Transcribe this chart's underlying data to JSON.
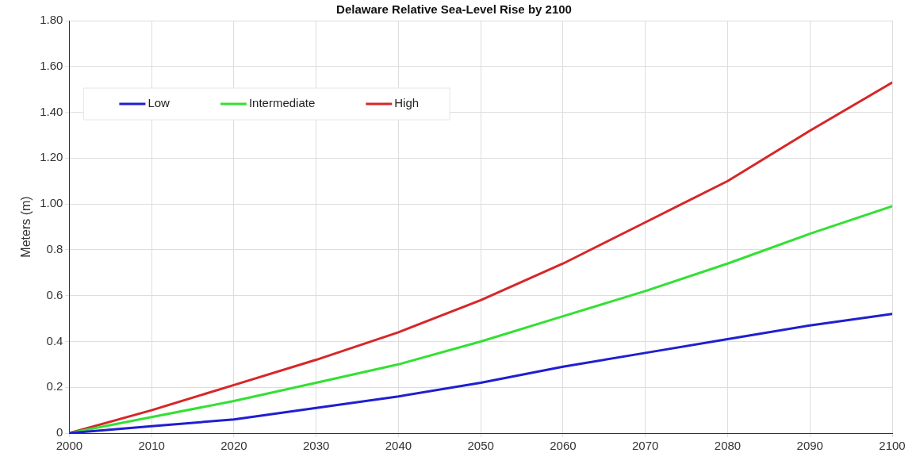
{
  "chart_data": {
    "type": "line",
    "title": "Delaware Relative Sea-Level Rise by 2100",
    "ylabel": "Meters (m)",
    "x": [
      2000,
      2010,
      2020,
      2030,
      2040,
      2050,
      2060,
      2070,
      2080,
      2090,
      2100
    ],
    "series": [
      {
        "name": "Low",
        "color": "#1f1fd0",
        "values": [
          0,
          0.03,
          0.06,
          0.11,
          0.16,
          0.22,
          0.29,
          0.35,
          0.41,
          0.47,
          0.52
        ]
      },
      {
        "name": "Intermediate",
        "color": "#33e033",
        "values": [
          0,
          0.07,
          0.14,
          0.22,
          0.3,
          0.4,
          0.51,
          0.62,
          0.74,
          0.87,
          0.99
        ]
      },
      {
        "name": "High",
        "color": "#d62728",
        "values": [
          0,
          0.1,
          0.21,
          0.32,
          0.44,
          0.58,
          0.74,
          0.92,
          1.1,
          1.32,
          1.53
        ]
      }
    ],
    "xlim": [
      2000,
      2100
    ],
    "xticks": [
      2000,
      2010,
      2020,
      2030,
      2040,
      2050,
      2060,
      2070,
      2080,
      2090,
      2100
    ],
    "ylim": [
      0,
      1.8
    ],
    "yticks": [
      0,
      {
        "value": 0.2,
        "label": "0.2"
      },
      {
        "value": 0.4,
        "label": "0.4"
      },
      {
        "value": 0.6,
        "label": "0.6"
      },
      {
        "value": 0.8,
        "label": "0.8"
      },
      {
        "value": 1,
        "label": "1.00"
      },
      {
        "value": 1.2,
        "label": "1.20"
      },
      {
        "value": 1.4,
        "label": "1.40"
      },
      {
        "value": 1.6,
        "label": "1.60"
      },
      {
        "value": 1.8,
        "label": "1.80"
      }
    ],
    "grid": true,
    "legend": "top left",
    "marker": "none",
    "line_style": "solid"
  }
}
